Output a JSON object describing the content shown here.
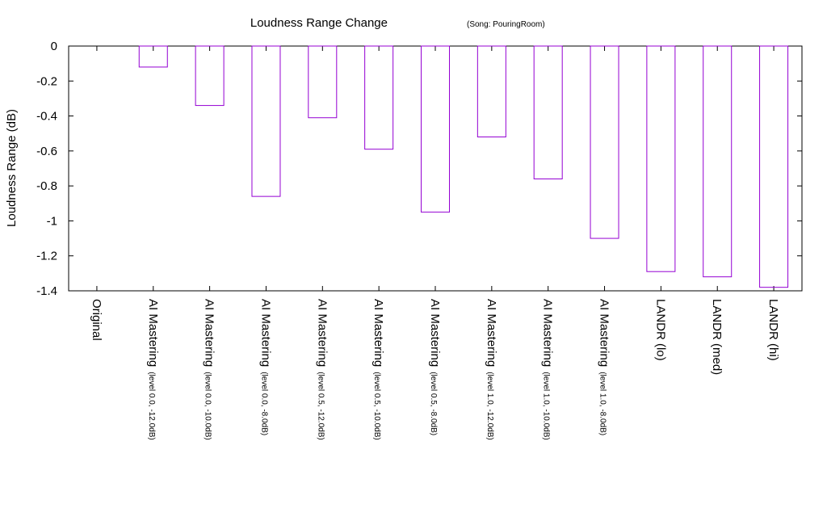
{
  "chart_data": {
    "type": "bar",
    "title": "Loudness Range Change",
    "subtitle": "(Song: PouringRoom)",
    "xlabel": "",
    "ylabel": "Loudness Range (dB)",
    "ylim": [
      -1.4,
      0
    ],
    "yticks": [
      "0",
      "-0.2",
      "-0.4",
      "-0.6",
      "-0.8",
      "-1",
      "-1.2",
      "-1.4"
    ],
    "grid": false,
    "legend": "none",
    "bar_color": "#9400d3",
    "categories": [
      {
        "label": "Original",
        "sub": ""
      },
      {
        "label": "AI Mastering",
        "sub": "(level 0.0, -12.0dB)"
      },
      {
        "label": "AI Mastering",
        "sub": "(level 0.0, -10.0dB)"
      },
      {
        "label": "AI Mastering",
        "sub": "(level 0.0, -8.0dB)"
      },
      {
        "label": "AI Mastering",
        "sub": "(level 0.5, -12.0dB)"
      },
      {
        "label": "AI Mastering",
        "sub": "(level 0.5, -10.0dB)"
      },
      {
        "label": "AI Mastering",
        "sub": "(level 0.5, -8.0dB)"
      },
      {
        "label": "AI Mastering",
        "sub": "(level 1.0, -12.0dB)"
      },
      {
        "label": "AI Mastering",
        "sub": "(level 1.0, -10.0dB)"
      },
      {
        "label": "AI Mastering",
        "sub": "(level 1.0, -8.0dB)"
      },
      {
        "label": "LANDR (lo)",
        "sub": ""
      },
      {
        "label": "LANDR (med)",
        "sub": ""
      },
      {
        "label": "LANDR (hi)",
        "sub": ""
      }
    ],
    "values": [
      0,
      -0.12,
      -0.34,
      -0.86,
      -0.41,
      -0.59,
      -0.95,
      -0.52,
      -0.76,
      -1.1,
      -1.29,
      -1.32,
      -1.38
    ]
  }
}
